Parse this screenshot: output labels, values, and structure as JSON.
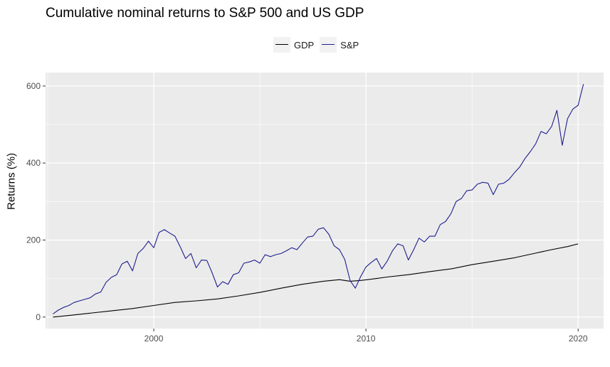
{
  "title": "Cumulative nominal returns to S&P 500 and US GDP",
  "colors": {
    "panel": "#ebebeb",
    "grid": "#ffffff",
    "gdp": "#000000",
    "sp": "#1f1f8f"
  },
  "chart_data": {
    "type": "line",
    "title": "Cumulative nominal returns to S&P 500 and US GDP",
    "xlabel": "",
    "ylabel": "Returns (%)",
    "xlim": [
      1994.9,
      2021.2
    ],
    "ylim": [
      -30,
      635
    ],
    "xticks": [
      2000,
      2010,
      2020
    ],
    "yticks": [
      0,
      200,
      400,
      600
    ],
    "grid": true,
    "legend_position": "top",
    "series": [
      {
        "name": "GDP",
        "color": "#000000",
        "points": [
          [
            1995.25,
            0
          ],
          [
            1996.0,
            4
          ],
          [
            1997.0,
            10
          ],
          [
            1998.0,
            16
          ],
          [
            1999.0,
            22
          ],
          [
            2000.0,
            30
          ],
          [
            2001.0,
            38
          ],
          [
            2002.0,
            42
          ],
          [
            2003.0,
            47
          ],
          [
            2004.0,
            55
          ],
          [
            2005.0,
            64
          ],
          [
            2006.0,
            75
          ],
          [
            2007.0,
            85
          ],
          [
            2008.0,
            93
          ],
          [
            2008.75,
            97
          ],
          [
            2009.25,
            93
          ],
          [
            2009.75,
            95
          ],
          [
            2010.5,
            100
          ],
          [
            2011.0,
            104
          ],
          [
            2012.0,
            110
          ],
          [
            2013.0,
            118
          ],
          [
            2014.0,
            125
          ],
          [
            2015.0,
            136
          ],
          [
            2016.0,
            145
          ],
          [
            2017.0,
            154
          ],
          [
            2018.0,
            166
          ],
          [
            2018.75,
            175
          ],
          [
            2019.5,
            183
          ],
          [
            2020.0,
            190
          ]
        ]
      },
      {
        "name": "S&P",
        "color": "#1f1f8f",
        "points": [
          [
            1995.25,
            8
          ],
          [
            1995.5,
            18
          ],
          [
            1995.75,
            25
          ],
          [
            1996.0,
            30
          ],
          [
            1996.25,
            38
          ],
          [
            1996.5,
            42
          ],
          [
            1996.75,
            46
          ],
          [
            1997.0,
            50
          ],
          [
            1997.25,
            60
          ],
          [
            1997.5,
            65
          ],
          [
            1997.75,
            90
          ],
          [
            1998.0,
            103
          ],
          [
            1998.25,
            110
          ],
          [
            1998.5,
            138
          ],
          [
            1998.75,
            145
          ],
          [
            1999.0,
            120
          ],
          [
            1999.25,
            165
          ],
          [
            1999.5,
            178
          ],
          [
            1999.75,
            197
          ],
          [
            2000.0,
            180
          ],
          [
            2000.25,
            220
          ],
          [
            2000.5,
            227
          ],
          [
            2000.75,
            218
          ],
          [
            2001.0,
            210
          ],
          [
            2001.25,
            182
          ],
          [
            2001.5,
            152
          ],
          [
            2001.75,
            165
          ],
          [
            2002.0,
            128
          ],
          [
            2002.25,
            148
          ],
          [
            2002.5,
            147
          ],
          [
            2002.75,
            115
          ],
          [
            2003.0,
            78
          ],
          [
            2003.25,
            92
          ],
          [
            2003.5,
            85
          ],
          [
            2003.75,
            110
          ],
          [
            2004.0,
            115
          ],
          [
            2004.25,
            140
          ],
          [
            2004.5,
            143
          ],
          [
            2004.75,
            148
          ],
          [
            2005.0,
            140
          ],
          [
            2005.25,
            162
          ],
          [
            2005.5,
            157
          ],
          [
            2005.75,
            162
          ],
          [
            2006.0,
            165
          ],
          [
            2006.25,
            172
          ],
          [
            2006.5,
            180
          ],
          [
            2006.75,
            175
          ],
          [
            2007.0,
            192
          ],
          [
            2007.25,
            208
          ],
          [
            2007.5,
            210
          ],
          [
            2007.75,
            228
          ],
          [
            2008.0,
            232
          ],
          [
            2008.25,
            215
          ],
          [
            2008.5,
            185
          ],
          [
            2008.75,
            175
          ],
          [
            2009.0,
            150
          ],
          [
            2009.25,
            95
          ],
          [
            2009.5,
            75
          ],
          [
            2009.75,
            105
          ],
          [
            2010.0,
            130
          ],
          [
            2010.25,
            142
          ],
          [
            2010.5,
            152
          ],
          [
            2010.75,
            125
          ],
          [
            2011.0,
            145
          ],
          [
            2011.25,
            172
          ],
          [
            2011.5,
            190
          ],
          [
            2011.75,
            185
          ],
          [
            2012.0,
            148
          ],
          [
            2012.25,
            175
          ],
          [
            2012.5,
            205
          ],
          [
            2012.75,
            195
          ],
          [
            2013.0,
            210
          ],
          [
            2013.25,
            210
          ],
          [
            2013.5,
            240
          ],
          [
            2013.75,
            248
          ],
          [
            2014.0,
            268
          ],
          [
            2014.25,
            300
          ],
          [
            2014.5,
            308
          ],
          [
            2014.75,
            328
          ],
          [
            2015.0,
            330
          ],
          [
            2015.25,
            345
          ],
          [
            2015.5,
            350
          ],
          [
            2015.75,
            348
          ],
          [
            2016.0,
            318
          ],
          [
            2016.25,
            345
          ],
          [
            2016.5,
            348
          ],
          [
            2016.75,
            358
          ],
          [
            2017.0,
            375
          ],
          [
            2017.25,
            390
          ],
          [
            2017.5,
            412
          ],
          [
            2017.75,
            430
          ],
          [
            2018.0,
            450
          ],
          [
            2018.25,
            482
          ],
          [
            2018.5,
            476
          ],
          [
            2018.75,
            495
          ],
          [
            2019.0,
            537
          ],
          [
            2019.25,
            446
          ],
          [
            2019.5,
            515
          ],
          [
            2019.75,
            540
          ],
          [
            2020.0,
            550
          ],
          [
            2020.25,
            605
          ]
        ]
      }
    ]
  }
}
